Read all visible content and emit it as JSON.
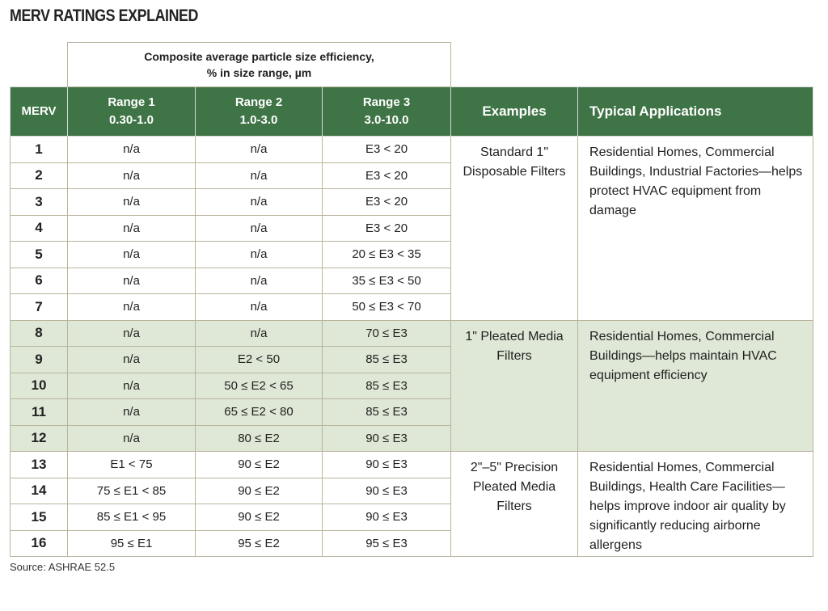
{
  "title": "MERV RATINGS EXPLAINED",
  "table": {
    "super_header": [
      "Composite average particle size efficiency,",
      "% in size range, µm"
    ],
    "header": [
      {
        "name": "MERV"
      },
      {
        "name": "Range 1",
        "range": "0.30-1.0"
      },
      {
        "name": "Range 2",
        "range": "1.0-3.0"
      },
      {
        "name": "Range 3",
        "range": "3.0-10.0"
      },
      {
        "name": "Examples"
      },
      {
        "name": "Typical Applications"
      }
    ],
    "groups": [
      {
        "rows": [
          [
            1,
            "n/a",
            "n/a",
            "E3 < 20"
          ],
          [
            2,
            "n/a",
            "n/a",
            "E3 < 20"
          ],
          [
            3,
            "n/a",
            "n/a",
            "E3 < 20"
          ],
          [
            4,
            "n/a",
            "n/a",
            "E3 < 20"
          ],
          [
            5,
            "n/a",
            "n/a",
            "20 ≤ E3 < 35"
          ],
          [
            6,
            "n/a",
            "n/a",
            "35 ≤ E3 < 50"
          ],
          [
            7,
            "n/a",
            "n/a",
            "50 ≤ E3 < 70"
          ]
        ],
        "examples": "Standard 1\" Disposable Filters",
        "applications": "Residential Homes, Commercial Buildings, Industrial Factories—helps protect HVAC equipment from damage"
      },
      {
        "rows": [
          [
            8,
            "n/a",
            "n/a",
            "70 ≤ E3"
          ],
          [
            9,
            "n/a",
            "E2 < 50",
            "85 ≤ E3"
          ],
          [
            10,
            "n/a",
            "50 ≤ E2 < 65",
            "85 ≤ E3"
          ],
          [
            11,
            "n/a",
            "65 ≤ E2 < 80",
            "85 ≤ E3"
          ],
          [
            12,
            "n/a",
            "80 ≤ E2",
            "90 ≤ E3"
          ]
        ],
        "examples": "1\" Pleated Media Filters",
        "applications": "Residential Homes, Commercial Buildings—helps maintain HVAC equipment efficiency"
      },
      {
        "rows": [
          [
            13,
            "E1 < 75",
            "90 ≤ E2",
            "90 ≤ E3"
          ],
          [
            14,
            "75 ≤ E1 < 85",
            "90 ≤ E2",
            "90 ≤ E3"
          ],
          [
            15,
            "85 ≤ E1 < 95",
            "90 ≤ E2",
            "90 ≤ E3"
          ],
          [
            16,
            "95 ≤ E1",
            "95 ≤ E2",
            "95 ≤ E3"
          ]
        ],
        "examples": "2\"–5\" Precision Pleated Media Filters",
        "applications": "Residential Homes, Commercial Buildings, Health Care Facilities—helps improve indoor air quality by significantly reducing airborne allergens"
      }
    ]
  },
  "source": "Source: ASHRAE 52.5"
}
